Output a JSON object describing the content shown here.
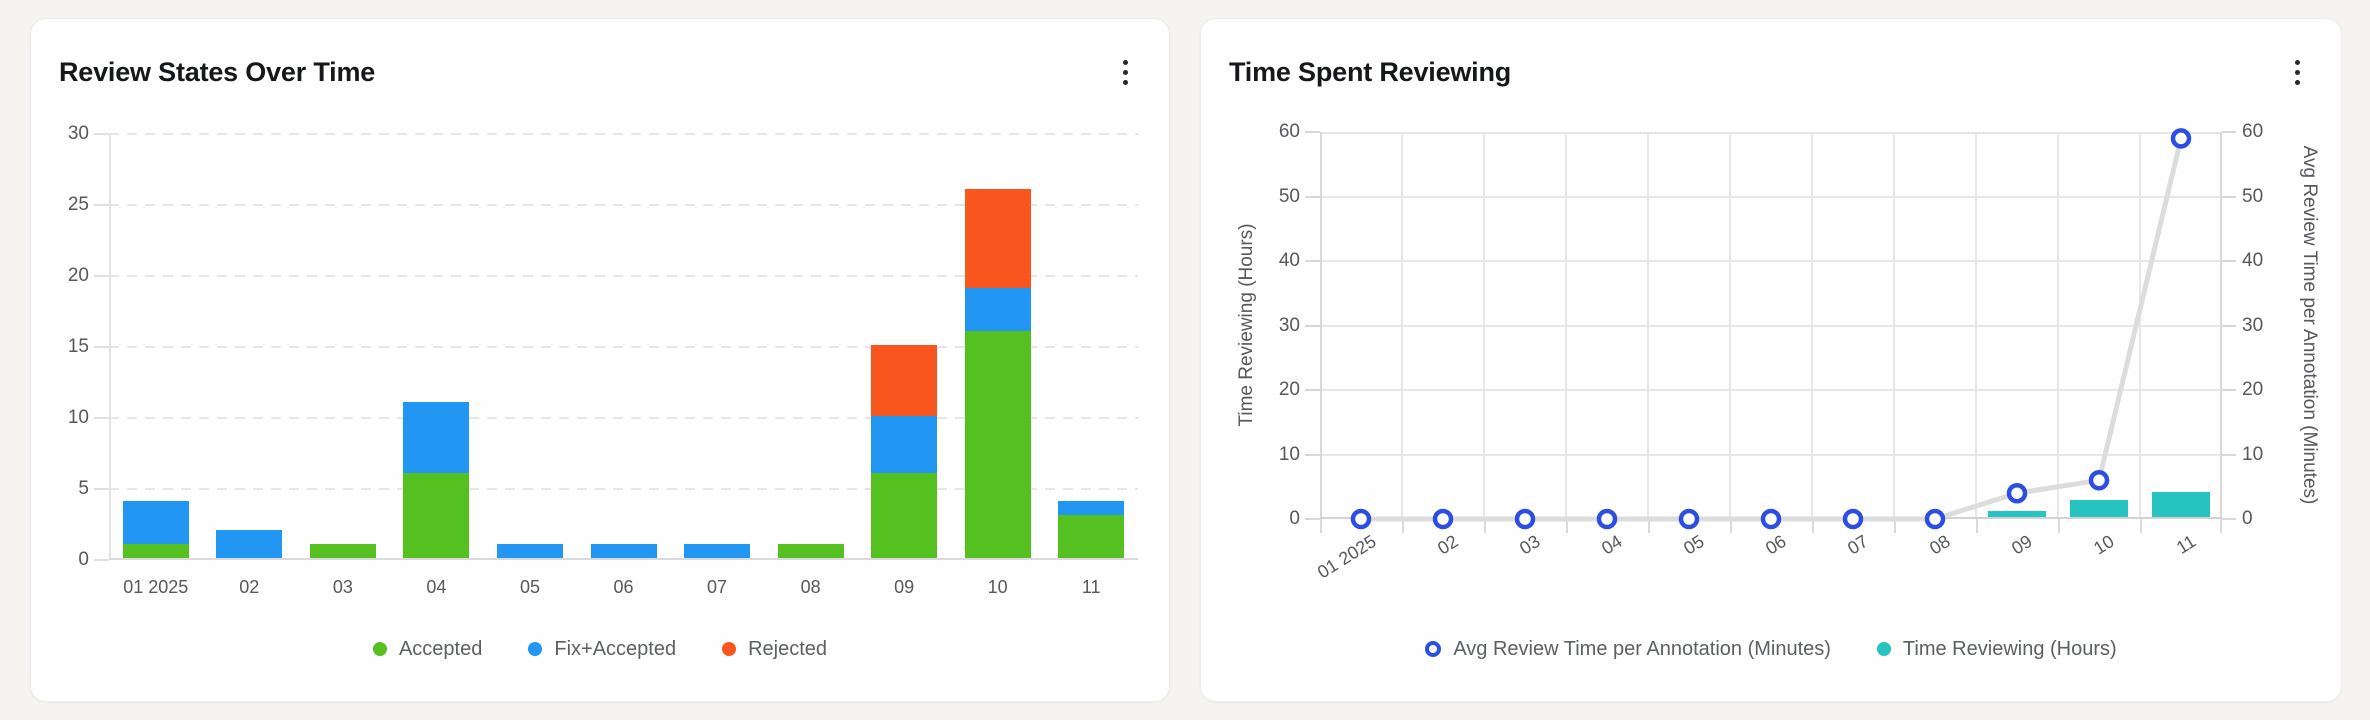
{
  "page": {
    "background": "#f5f4f1",
    "card_background": "#fefefe"
  },
  "cards": [
    {
      "menu_icon": "kebab-menu"
    },
    {
      "menu_icon": "kebab-menu"
    }
  ],
  "chart_data": [
    {
      "type": "bar",
      "stacked": true,
      "title": "Review States Over Time",
      "categories": [
        "01 2025",
        "02",
        "03",
        "04",
        "05",
        "06",
        "07",
        "08",
        "09",
        "10",
        "11"
      ],
      "series": [
        {
          "name": "Accepted",
          "color": "#54c120",
          "values": [
            1,
            0,
            1,
            6,
            0,
            0,
            0,
            1,
            6,
            16,
            3
          ]
        },
        {
          "name": "Fix+Accepted",
          "color": "#2196f3",
          "values": [
            3,
            2,
            0,
            5,
            1,
            1,
            1,
            0,
            4,
            3,
            1
          ]
        },
        {
          "name": "Rejected",
          "color": "#f9561f",
          "values": [
            0,
            0,
            0,
            0,
            0,
            0,
            0,
            0,
            5,
            7,
            0
          ]
        }
      ],
      "ylim": [
        0,
        30
      ],
      "yticks": [
        0,
        5,
        10,
        15,
        20,
        25,
        30
      ],
      "xlabel": "",
      "ylabel": "",
      "grid": "horizontal-dashed",
      "legend_position": "bottom"
    },
    {
      "type": "combo",
      "title": "Time Spent Reviewing",
      "categories": [
        "01 2025",
        "02",
        "03",
        "04",
        "05",
        "06",
        "07",
        "08",
        "09",
        "10",
        "11"
      ],
      "bar_series": {
        "name": "Time Reviewing (Hours)",
        "axis": "left",
        "color": "#26c3c0",
        "values": [
          0,
          0,
          0,
          0,
          0,
          0,
          0,
          0,
          1,
          2.7,
          3.9
        ]
      },
      "line_series": {
        "name": "Avg Review Time per Annotation (Minutes)",
        "axis": "right",
        "line_color": "#dcdcdc",
        "marker_color": "#2c4ee2",
        "marker_fill": "#ffffff",
        "values": [
          0,
          0,
          0,
          0,
          0,
          0,
          0,
          0,
          4,
          6,
          59
        ]
      },
      "left_axis": {
        "label": "Time Reviewing (Hours)",
        "ylim": [
          0,
          60
        ],
        "ticks": [
          0,
          10,
          20,
          30,
          40,
          50,
          60
        ]
      },
      "right_axis": {
        "label": "Avg Review Time per Annotation (Minutes)",
        "ylim": [
          0,
          60
        ],
        "ticks": [
          0,
          10,
          20,
          30,
          40,
          50,
          60
        ]
      },
      "grid": "solid-both",
      "legend_position": "bottom"
    }
  ]
}
